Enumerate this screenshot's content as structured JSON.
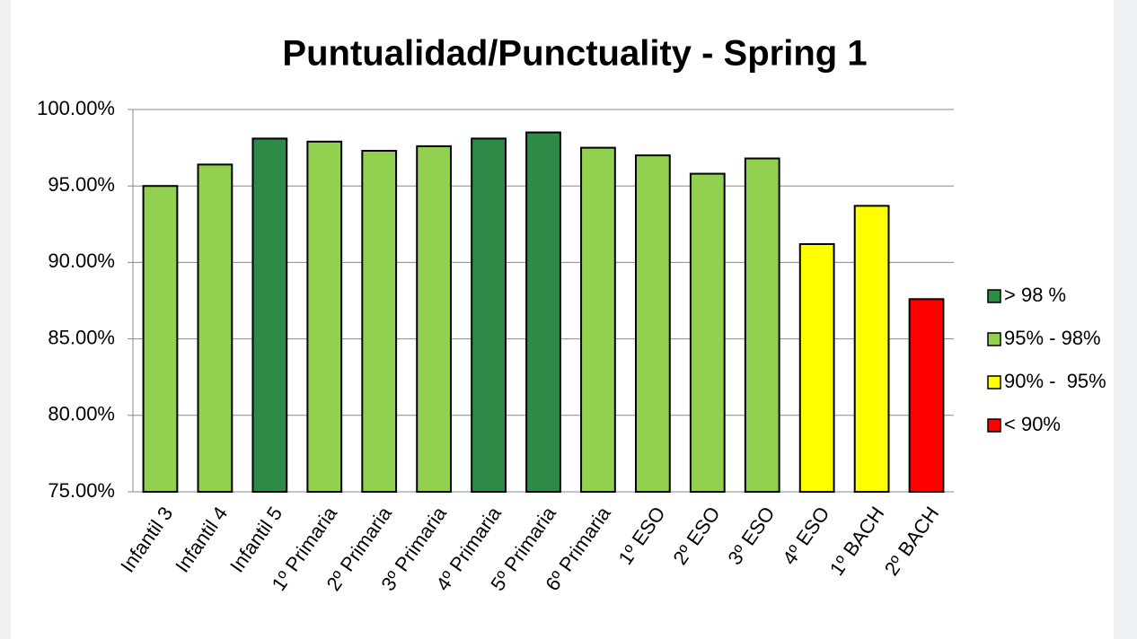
{
  "chart_data": {
    "type": "bar",
    "title": "Puntualidad/Punctuality - Spring 1",
    "categories": [
      "Infantil 3",
      "Infantil 4",
      "Infantil 5",
      "1º Primaria",
      "2º Primaria",
      "3º Primaria",
      "4º Primaria",
      "5º Primaria",
      "6º Primaria",
      "1º ESO",
      "2º ESO",
      "3º ESO",
      "4º ESO",
      "1º BACH",
      "2º BACH"
    ],
    "values": [
      95.0,
      96.4,
      98.1,
      97.9,
      97.3,
      97.6,
      98.1,
      98.5,
      97.5,
      97.0,
      95.8,
      96.8,
      91.2,
      93.7,
      87.6
    ],
    "colors": [
      "#92d050",
      "#92d050",
      "#2e8b47",
      "#92d050",
      "#92d050",
      "#92d050",
      "#2e8b47",
      "#2e8b47",
      "#92d050",
      "#92d050",
      "#92d050",
      "#92d050",
      "#ffff00",
      "#ffff00",
      "#ff0000"
    ],
    "legend": [
      {
        "label": "> 98 %",
        "color": "#2e8b47"
      },
      {
        "label": "95% - 98%",
        "color": "#92d050"
      },
      {
        "label": "90% -  95%",
        "color": "#ffff00"
      },
      {
        "label": "< 90%",
        "color": "#ff0000"
      }
    ],
    "ylim": [
      75,
      100
    ],
    "yticks": [
      {
        "value": 75,
        "label": "75.00%"
      },
      {
        "value": 80,
        "label": "80.00%"
      },
      {
        "value": 85,
        "label": "85.00%"
      },
      {
        "value": 90,
        "label": "90.00%"
      },
      {
        "value": 95,
        "label": "95.00%"
      },
      {
        "value": 100,
        "label": "100.00%"
      }
    ],
    "grid": true
  }
}
